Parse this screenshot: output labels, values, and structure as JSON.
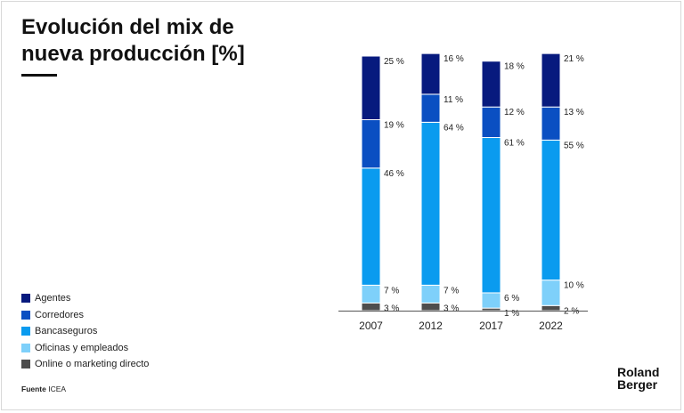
{
  "title_line1": "Evolución del mix de",
  "title_line2": "nueva producción [%]",
  "source_prefix": "Fuente",
  "source_text": "ICEA",
  "logo_line1": "Roland",
  "logo_line2": "Berger",
  "colors": {
    "Agentes": "#071a7e",
    "Corredores": "#0a4fc2",
    "Bancaseguros": "#0a9bef",
    "Oficinas y empleados": "#7ed0fa",
    "Online o marketing directo": "#4d4d4d",
    "axis": "#555555"
  },
  "chart_data": {
    "type": "bar",
    "stacked": true,
    "categories": [
      "2007",
      "2012",
      "2017",
      "2022"
    ],
    "series": [
      {
        "name": "Online o marketing directo",
        "values": [
          3,
          3,
          1,
          2
        ]
      },
      {
        "name": "Oficinas y empleados",
        "values": [
          7,
          7,
          6,
          10
        ]
      },
      {
        "name": "Bancaseguros",
        "values": [
          46,
          64,
          61,
          55
        ]
      },
      {
        "name": "Corredores",
        "values": [
          19,
          11,
          12,
          13
        ]
      },
      {
        "name": "Agentes",
        "values": [
          25,
          16,
          18,
          21
        ]
      }
    ],
    "value_suffix": "%",
    "ylim": [
      0,
      100
    ],
    "legend_position": "bottom-left",
    "legend_order": [
      "Agentes",
      "Corredores",
      "Bancaseguros",
      "Oficinas y empleados",
      "Online o marketing directo"
    ]
  }
}
